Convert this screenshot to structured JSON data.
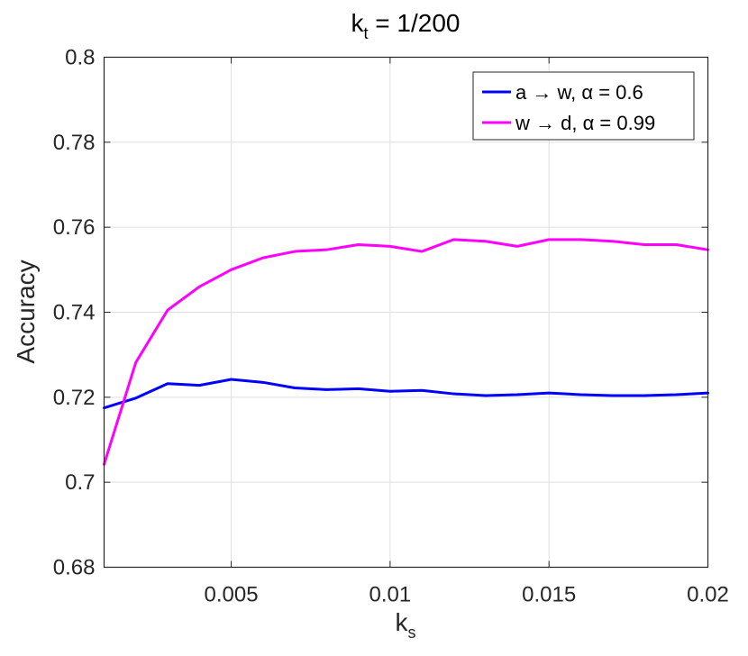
{
  "chart_data": {
    "type": "line",
    "title": {
      "main": "k",
      "sub": "t",
      "suffix": " = 1/200"
    },
    "xlabel": {
      "main": "k",
      "sub": "s"
    },
    "ylabel": "Accuracy",
    "xlim": [
      0.001,
      0.02
    ],
    "ylim": [
      0.68,
      0.8
    ],
    "xticks": [
      0.005,
      0.01,
      0.015,
      0.02
    ],
    "xtick_labels": [
      "0.005",
      "0.01",
      "0.015",
      "0.02"
    ],
    "yticks": [
      0.68,
      0.7,
      0.72,
      0.74,
      0.76,
      0.78,
      0.8
    ],
    "ytick_labels": [
      "0.68",
      "0.7",
      "0.72",
      "0.74",
      "0.76",
      "0.78",
      "0.8"
    ],
    "grid": true,
    "legend_position": "top-right",
    "x": [
      0.001,
      0.002,
      0.003,
      0.004,
      0.005,
      0.006,
      0.007,
      0.008,
      0.009,
      0.01,
      0.011,
      0.012,
      0.013,
      0.014,
      0.015,
      0.016,
      0.017,
      0.018,
      0.019,
      0.02
    ],
    "series": [
      {
        "name": "a → w, α = 0.6",
        "color": "#0000ff",
        "values": [
          0.7175,
          0.7198,
          0.7232,
          0.7228,
          0.7242,
          0.7235,
          0.7222,
          0.7218,
          0.722,
          0.7214,
          0.7216,
          0.7208,
          0.7204,
          0.7206,
          0.721,
          0.7206,
          0.7204,
          0.7204,
          0.7206,
          0.721
        ]
      },
      {
        "name": "w → d, α = 0.99",
        "color": "#ff00ff",
        "values": [
          0.7042,
          0.7282,
          0.7405,
          0.746,
          0.75,
          0.7528,
          0.7543,
          0.7547,
          0.7559,
          0.7555,
          0.7543,
          0.7571,
          0.7567,
          0.7555,
          0.7571,
          0.7571,
          0.7567,
          0.7559,
          0.7559,
          0.7547
        ]
      }
    ]
  }
}
